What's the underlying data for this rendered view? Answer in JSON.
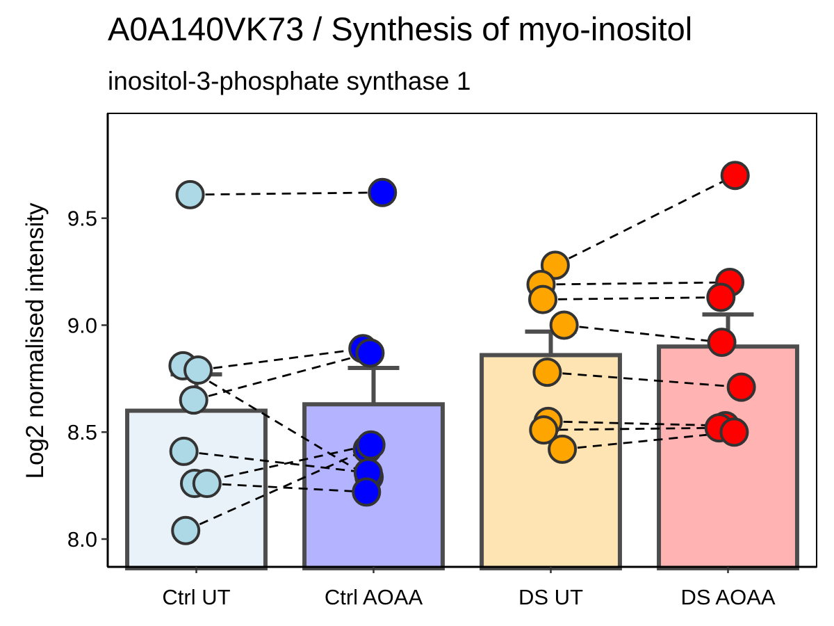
{
  "chart_data": {
    "type": "bar",
    "title": "A0A140VK73 / Synthesis of myo-inositol",
    "subtitle": "inositol-3-phosphate synthase 1",
    "xlabel": "",
    "ylabel": "Log2 normalised intensity",
    "ylim": [
      7.87,
      9.99
    ],
    "yticks": [
      8.0,
      8.5,
      9.0,
      9.5
    ],
    "ytick_labels": [
      "8.0",
      "8.5",
      "9.0",
      "9.5"
    ],
    "grid": false,
    "legend": "none",
    "categories": [
      "Ctrl UT",
      "Ctrl AOAA",
      "DS UT",
      "DS AOAA"
    ],
    "bar_fill_colors": [
      "#e8f2f8",
      "#b3b3ff",
      "#fde4b2",
      "#ffb3b3"
    ],
    "point_colors": [
      "#add8e6",
      "#0000ff",
      "#ffa500",
      "#ff0000"
    ],
    "outline_color": "#4d4d4d",
    "means": [
      8.6,
      8.63,
      8.86,
      8.9
    ],
    "error_upper": [
      8.77,
      8.8,
      8.97,
      9.05
    ],
    "points": [
      [
        {
          "x": -0.07,
          "y": 9.61
        },
        {
          "x": -0.15,
          "y": 8.81
        },
        {
          "x": 0.02,
          "y": 8.79
        },
        {
          "x": -0.03,
          "y": 8.65
        },
        {
          "x": -0.14,
          "y": 8.41
        },
        {
          "x": -0.02,
          "y": 8.26
        },
        {
          "x": 0.12,
          "y": 8.26
        },
        {
          "x": -0.12,
          "y": 8.04
        }
      ],
      [
        {
          "x": 0.1,
          "y": 9.62
        },
        {
          "x": -0.12,
          "y": 8.89
        },
        {
          "x": -0.04,
          "y": 8.87
        },
        {
          "x": -0.07,
          "y": 8.42
        },
        {
          "x": -0.03,
          "y": 8.44
        },
        {
          "x": -0.05,
          "y": 8.29
        },
        {
          "x": -0.06,
          "y": 8.31
        },
        {
          "x": -0.08,
          "y": 8.22
        }
      ],
      [
        {
          "x": 0.05,
          "y": 9.28
        },
        {
          "x": -0.11,
          "y": 9.19
        },
        {
          "x": -0.09,
          "y": 9.12
        },
        {
          "x": 0.15,
          "y": 9.0
        },
        {
          "x": -0.04,
          "y": 8.78
        },
        {
          "x": -0.03,
          "y": 8.55
        },
        {
          "x": -0.08,
          "y": 8.51
        },
        {
          "x": 0.13,
          "y": 8.42
        }
      ],
      [
        {
          "x": 0.08,
          "y": 9.7
        },
        {
          "x": 0.02,
          "y": 9.2
        },
        {
          "x": -0.08,
          "y": 9.13
        },
        {
          "x": -0.07,
          "y": 8.92
        },
        {
          "x": 0.15,
          "y": 8.71
        },
        {
          "x": -0.03,
          "y": 8.53
        },
        {
          "x": -0.1,
          "y": 8.52
        },
        {
          "x": 0.07,
          "y": 8.5
        }
      ]
    ],
    "pairs": [
      {
        "from_group": 0,
        "to_group": 1,
        "links": [
          [
            0,
            0
          ],
          [
            1,
            5
          ],
          [
            2,
            1
          ],
          [
            3,
            2
          ],
          [
            4,
            6
          ],
          [
            5,
            4
          ],
          [
            6,
            7
          ],
          [
            7,
            3
          ]
        ]
      },
      {
        "from_group": 2,
        "to_group": 3,
        "links": [
          [
            0,
            0
          ],
          [
            1,
            1
          ],
          [
            2,
            2
          ],
          [
            3,
            3
          ],
          [
            4,
            4
          ],
          [
            5,
            5
          ],
          [
            6,
            6
          ],
          [
            7,
            7
          ]
        ]
      }
    ]
  }
}
